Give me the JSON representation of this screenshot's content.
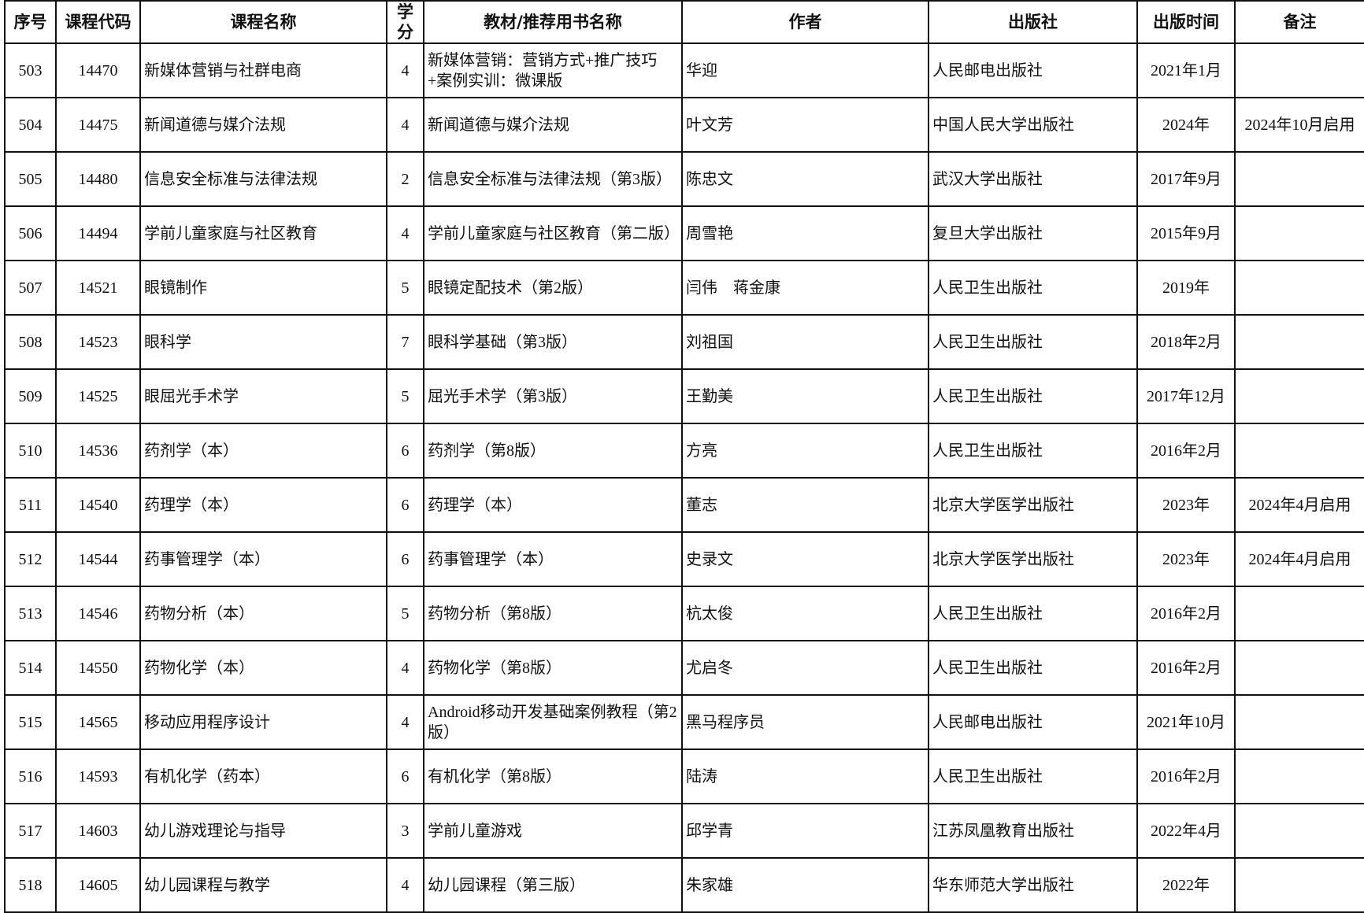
{
  "headers": [
    "序号",
    "课程代码",
    "课程名称",
    "学分",
    "教材/推荐用书名称",
    "作者",
    "出版社",
    "出版时间",
    "备注"
  ],
  "rows": [
    [
      "503",
      "14470",
      "新媒体营销与社群电商",
      "4",
      "新媒体营销：营销方式+推广技巧+案例实训：微课版",
      "华迎",
      "人民邮电出版社",
      "2021年1月",
      ""
    ],
    [
      "504",
      "14475",
      "新闻道德与媒介法规",
      "4",
      "新闻道德与媒介法规",
      "叶文芳",
      "中国人民大学出版社",
      "2024年",
      "2024年10月启用"
    ],
    [
      "505",
      "14480",
      "信息安全标准与法律法规",
      "2",
      "信息安全标准与法律法规（第3版）",
      "陈忠文",
      "武汉大学出版社",
      "2017年9月",
      ""
    ],
    [
      "506",
      "14494",
      "学前儿童家庭与社区教育",
      "4",
      "学前儿童家庭与社区教育（第二版）",
      "周雪艳",
      "复旦大学出版社",
      "2015年9月",
      ""
    ],
    [
      "507",
      "14521",
      "眼镜制作",
      "5",
      "眼镜定配技术（第2版）",
      "闫伟　蒋金康",
      "人民卫生出版社",
      "2019年",
      ""
    ],
    [
      "508",
      "14523",
      "眼科学",
      "7",
      "眼科学基础（第3版）",
      "刘祖国",
      "人民卫生出版社",
      "2018年2月",
      ""
    ],
    [
      "509",
      "14525",
      "眼屈光手术学",
      "5",
      "屈光手术学（第3版）",
      "王勤美",
      "人民卫生出版社",
      "2017年12月",
      ""
    ],
    [
      "510",
      "14536",
      "药剂学（本）",
      "6",
      "药剂学（第8版）",
      "方亮",
      "人民卫生出版社",
      "2016年2月",
      ""
    ],
    [
      "511",
      "14540",
      "药理学（本）",
      "6",
      "药理学（本）",
      "董志",
      "北京大学医学出版社",
      "2023年",
      "2024年4月启用"
    ],
    [
      "512",
      "14544",
      "药事管理学（本）",
      "6",
      "药事管理学（本）",
      "史录文",
      "北京大学医学出版社",
      "2023年",
      "2024年4月启用"
    ],
    [
      "513",
      "14546",
      "药物分析（本）",
      "5",
      "药物分析（第8版）",
      "杭太俊",
      "人民卫生出版社",
      "2016年2月",
      ""
    ],
    [
      "514",
      "14550",
      "药物化学（本）",
      "4",
      "药物化学（第8版）",
      "尤启冬",
      "人民卫生出版社",
      "2016年2月",
      ""
    ],
    [
      "515",
      "14565",
      "移动应用程序设计",
      "4",
      "Android移动开发基础案例教程（第2版）",
      "黑马程序员",
      "人民邮电出版社",
      "2021年10月",
      ""
    ],
    [
      "516",
      "14593",
      "有机化学（药本）",
      "6",
      "有机化学（第8版）",
      "陆涛",
      "人民卫生出版社",
      "2016年2月",
      ""
    ],
    [
      "517",
      "14603",
      "幼儿游戏理论与指导",
      "3",
      "学前儿童游戏",
      "邱学青",
      "江苏凤凰教育出版社",
      "2022年4月",
      ""
    ],
    [
      "518",
      "14605",
      "幼儿园课程与教学",
      "4",
      "幼儿园课程（第三版）",
      "朱家雄",
      "华东师范大学出版社",
      "2022年",
      ""
    ]
  ]
}
